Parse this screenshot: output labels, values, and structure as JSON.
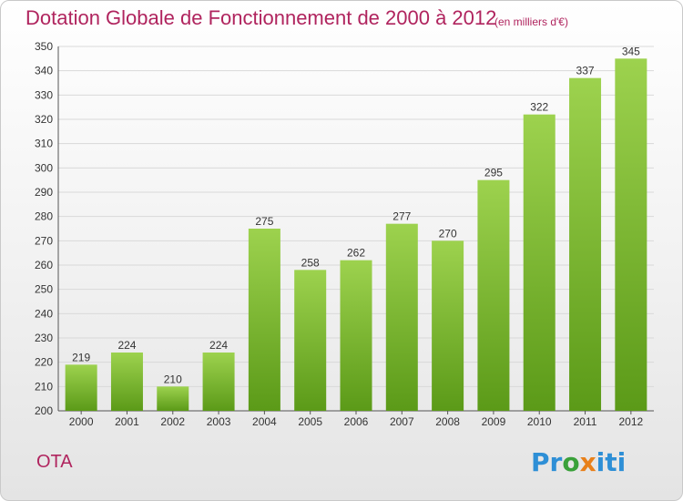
{
  "header": {
    "title": "Dotation Globale de Fonctionnement de 2000 à 2012",
    "subtitle": "(en milliers d'€)"
  },
  "footer": {
    "commune": "OTA",
    "logo_letters": [
      {
        "ch": "P",
        "color": "#2e8fd6"
      },
      {
        "ch": "r",
        "color": "#2e8fd6"
      },
      {
        "ch": "o",
        "color": "#3aa13a"
      },
      {
        "ch": "x",
        "color": "#e8801a"
      },
      {
        "ch": "i",
        "color": "#2e8fd6"
      },
      {
        "ch": "t",
        "color": "#2e8fd6"
      },
      {
        "ch": "i",
        "color": "#2e8fd6"
      }
    ]
  },
  "colors": {
    "bar_top": "#9dd24e",
    "bar_bottom": "#5b9a18",
    "title": "#b0245e",
    "grid": "#d9d9d9"
  },
  "chart_data": {
    "type": "bar",
    "title": "Dotation Globale de Fonctionnement de 2000 à 2012",
    "subtitle": "(en milliers d'€)",
    "categories": [
      "2000",
      "2001",
      "2002",
      "2003",
      "2004",
      "2005",
      "2006",
      "2007",
      "2008",
      "2009",
      "2010",
      "2011",
      "2012"
    ],
    "values": [
      219,
      224,
      210,
      224,
      275,
      258,
      262,
      277,
      270,
      295,
      322,
      337,
      345
    ],
    "ylim": [
      200,
      350
    ],
    "yticks": [
      200,
      210,
      220,
      230,
      240,
      250,
      260,
      270,
      280,
      290,
      300,
      310,
      320,
      330,
      340,
      350
    ],
    "grid": true,
    "legend": "none"
  }
}
